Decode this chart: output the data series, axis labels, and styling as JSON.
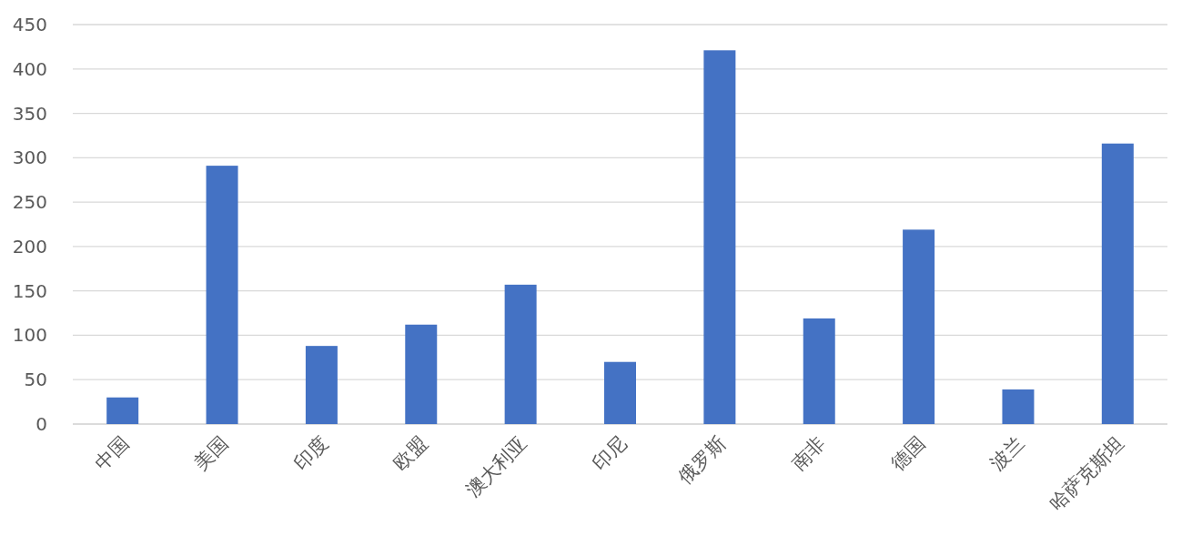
{
  "chart_data": {
    "type": "bar",
    "categories": [
      "中国",
      "美国",
      "印度",
      "欧盟",
      "澳大利亚",
      "印尼",
      "俄罗斯",
      "南非",
      "德国",
      "波兰",
      "哈萨克斯坦"
    ],
    "values": [
      30,
      291,
      88,
      112,
      157,
      70,
      421,
      119,
      219,
      39,
      316
    ],
    "color": "#4472c4",
    "ylim": [
      0,
      450
    ],
    "yticks": [
      0,
      50,
      100,
      150,
      200,
      250,
      300,
      350,
      400,
      450
    ],
    "grid": "y"
  }
}
